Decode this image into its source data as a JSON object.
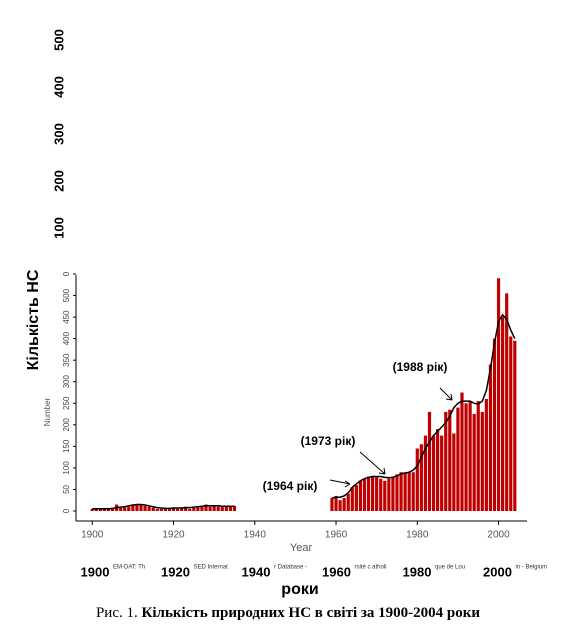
{
  "chart_data": {
    "type": "bar",
    "y_label": "Кількість НС",
    "small_y_label": "Number",
    "x_label": "Year",
    "outer_y_labels": [
      "500",
      "400",
      "300",
      "200",
      "100"
    ],
    "bottom_labels": [
      "1900",
      "1920",
      "1940",
      "1960",
      "1980",
      "2000"
    ],
    "bottom_axis_label": "роки",
    "overlay_texts": [
      "EM-DAT: Th",
      "SED Internat",
      "r Database -",
      "rsité c atholi",
      "que de Lou",
      "in - Belgium"
    ],
    "annotations": [
      "(1988 рік)",
      "(1973 рік)",
      "(1964 рік)"
    ],
    "caption_prefix": "Рис. 1.",
    "caption": "Кількість природних НС в світі за 1900-2004 роки",
    "x": [
      1900,
      1901,
      1902,
      1903,
      1904,
      1905,
      1906,
      1907,
      1908,
      1909,
      1910,
      1911,
      1912,
      1913,
      1914,
      1915,
      1916,
      1917,
      1918,
      1919,
      1920,
      1921,
      1922,
      1923,
      1924,
      1925,
      1926,
      1927,
      1928,
      1929,
      1930,
      1931,
      1932,
      1933,
      1934,
      1935,
      1936,
      1937,
      1938,
      1939,
      1940,
      1941,
      1942,
      1943,
      1944,
      1945,
      1946,
      1947,
      1948,
      1949,
      1950,
      1951,
      1952,
      1953,
      1954,
      1955,
      1956,
      1957,
      1958,
      1959,
      1960,
      1961,
      1962,
      1963,
      1964,
      1965,
      1966,
      1967,
      1968,
      1969,
      1970,
      1971,
      1972,
      1973,
      1974,
      1975,
      1976,
      1977,
      1978,
      1979,
      1980,
      1981,
      1982,
      1983,
      1984,
      1985,
      1986,
      1987,
      1988,
      1989,
      1990,
      1991,
      1992,
      1993,
      1994,
      1995,
      1996,
      1997,
      1998,
      1999,
      2000,
      2001,
      2002,
      2003,
      2004
    ],
    "series": [
      {
        "kind": "bar",
        "color": "#c00000",
        "values": [
          5,
          5,
          5,
          5,
          5,
          5,
          15,
          7,
          8,
          10,
          15,
          15,
          15,
          12,
          10,
          8,
          5,
          5,
          5,
          7,
          8,
          5,
          7,
          10,
          5,
          7,
          8,
          12,
          15,
          10,
          12,
          10,
          12,
          10,
          12,
          12,
          null,
          null,
          null,
          null,
          null,
          null,
          null,
          null,
          null,
          null,
          null,
          null,
          null,
          null,
          null,
          null,
          null,
          null,
          null,
          null,
          null,
          null,
          null,
          30,
          35,
          25,
          30,
          40,
          55,
          60,
          70,
          75,
          80,
          80,
          80,
          75,
          70,
          75,
          80,
          85,
          90,
          90,
          90,
          90,
          145,
          155,
          175,
          230,
          175,
          190,
          175,
          230,
          235,
          180,
          240,
          275,
          250,
          255,
          225,
          255,
          230,
          260,
          340,
          400,
          540,
          450,
          505,
          405,
          395
        ]
      },
      {
        "kind": "line",
        "color": "#000000",
        "values": [
          5,
          5,
          5,
          5,
          5,
          6,
          8,
          9,
          10,
          12,
          14,
          15,
          15,
          14,
          12,
          10,
          8,
          7,
          6,
          6,
          7,
          7,
          7,
          8,
          8,
          9,
          10,
          11,
          12,
          12,
          12,
          12,
          11,
          11,
          11,
          11,
          null,
          null,
          null,
          null,
          null,
          null,
          null,
          null,
          null,
          null,
          null,
          null,
          null,
          null,
          null,
          null,
          null,
          null,
          null,
          null,
          null,
          null,
          null,
          30,
          32,
          32,
          35,
          42,
          55,
          63,
          70,
          75,
          78,
          80,
          80,
          80,
          78,
          77,
          78,
          82,
          86,
          88,
          90,
          95,
          105,
          125,
          145,
          160,
          175,
          185,
          195,
          205,
          220,
          240,
          250,
          255,
          255,
          255,
          250,
          248,
          255,
          280,
          330,
          390,
          440,
          455,
          445,
          420,
          400
        ]
      }
    ],
    "xlim": [
      1896,
      2007
    ],
    "xticks": [
      1900,
      1920,
      1940,
      1960,
      1980,
      2000
    ],
    "ylim": [
      0,
      550
    ],
    "yticks": [
      0,
      50,
      100,
      150,
      200,
      250,
      300,
      350,
      400,
      450,
      500,
      {
        "value": 550,
        "label": "0"
      }
    ]
  }
}
